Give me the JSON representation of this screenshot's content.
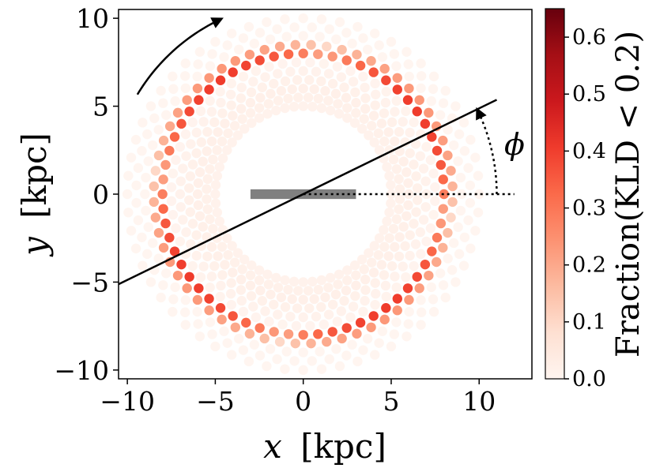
{
  "chart_data": {
    "type": "scatter",
    "description_kind": "polar grid of points colored by fraction",
    "xlabel_var": "x",
    "xlabel_unit": "[kpc]",
    "ylabel_var": "y",
    "ylabel_unit": "[kpc]",
    "xlim": [
      -10.5,
      13
    ],
    "ylim": [
      -10.5,
      10.5
    ],
    "xticks": [
      -10,
      -5,
      0,
      5,
      10
    ],
    "xtick_labels": [
      "−10",
      "−5",
      "0",
      "5",
      "10"
    ],
    "yticks": [
      -10,
      -5,
      0,
      5,
      10
    ],
    "ytick_labels": [
      "−10",
      "−5",
      "0",
      "5",
      "10"
    ],
    "rings": [
      {
        "r": 5.0,
        "alpha": 1.0
      },
      {
        "r": 5.5,
        "alpha": 1.0
      },
      {
        "r": 6.0,
        "alpha": 1.0
      },
      {
        "r": 6.5,
        "alpha": 1.0
      },
      {
        "r": 7.0,
        "alpha": 1.0
      },
      {
        "r": 7.5,
        "alpha": 1.0
      },
      {
        "r": 8.0,
        "alpha": 1.0
      },
      {
        "r": 8.5,
        "alpha": 1.0
      },
      {
        "r": 9.0,
        "alpha": 1.0
      },
      {
        "r": 9.5,
        "alpha": 1.0
      },
      {
        "r": 10.0,
        "alpha": 1.0
      }
    ],
    "points_per_ring": 60,
    "fraction_model": {
      "peak_radius": 8.2,
      "peak_width": 0.3,
      "minor_radius": 6.0,
      "minor_level": 0.02,
      "max_fraction": 0.63,
      "angular_modulation": [
        0.35,
        0.65
      ]
    },
    "bar": {
      "x0": -3.0,
      "x1": 3.0,
      "y": 0.0,
      "thickness": 0.55,
      "color": "#808080"
    },
    "bar_angle_line": {
      "angle_deg": 26.0,
      "x_from": -10.5,
      "x_to": 11.0
    },
    "reference_line": {
      "x_from": 0.0,
      "x_to": 12.0,
      "y": 0.0,
      "style": "dotted"
    },
    "phi_arc": {
      "radius": 11.0,
      "angle_from_deg": 0.0,
      "angle_to_deg": 26.0
    },
    "rotation_arrow": {
      "radius": 11.0,
      "angle_from_deg": 149,
      "angle_to_deg": 115
    },
    "annotation_phi": "ϕ",
    "colorbar": {
      "label": "Fraction(KLD < 0.2)",
      "min": 0.0,
      "max": 0.65,
      "ticks": [
        0.0,
        0.1,
        0.2,
        0.3,
        0.4,
        0.5,
        0.6
      ],
      "tick_labels": [
        "0.0",
        "0.1",
        "0.2",
        "0.3",
        "0.4",
        "0.5",
        "0.6"
      ],
      "colormap": "Reds",
      "stops": [
        "#fff5f0",
        "#fee0d2",
        "#fcbba1",
        "#fc9272",
        "#fb6a4a",
        "#ef3b2c",
        "#cb181d",
        "#a50f15",
        "#67000d"
      ]
    }
  }
}
